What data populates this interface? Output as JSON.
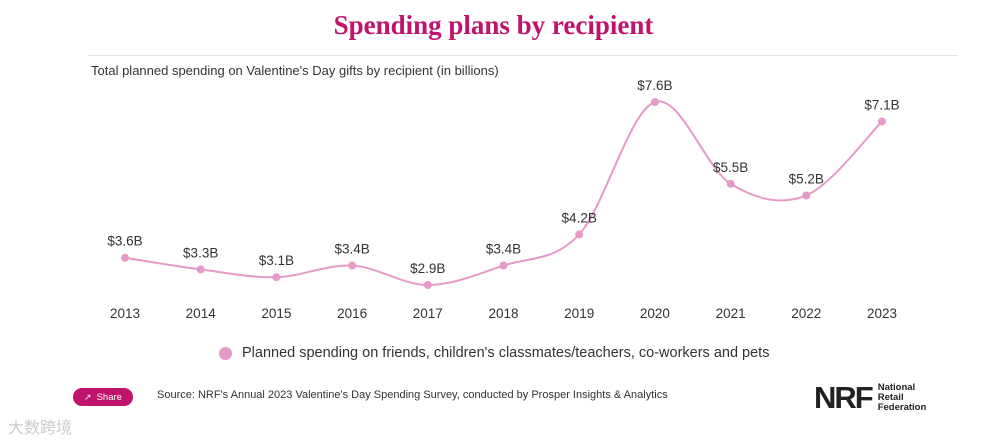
{
  "title": "Spending plans by recipient",
  "subtitle": "Total planned spending on Valentine's Day gifts by recipient (in billions)",
  "share_label": "Share",
  "source": "Source: NRF's Annual 2023 Valentine's Day Spending Survey, conducted by Prosper Insights & Analytics",
  "logo": {
    "mark": "NRF",
    "line1": "National",
    "line2": "Retail",
    "line3": "Federation"
  },
  "watermark": "大数跨境",
  "colors": {
    "accent": "#c0136b",
    "series": "#e59ac8",
    "text": "#333333"
  },
  "chart_data": {
    "type": "line",
    "title": "Spending plans by recipient",
    "subtitle": "Total planned spending on Valentine's Day gifts by recipient (in billions)",
    "categories": [
      "2013",
      "2014",
      "2015",
      "2016",
      "2017",
      "2018",
      "2019",
      "2020",
      "2021",
      "2022",
      "2023"
    ],
    "series": [
      {
        "name": "Planned spending on friends, children's classmates/teachers, co-workers and pets",
        "values": [
          3.6,
          3.3,
          3.1,
          3.4,
          2.9,
          3.4,
          4.2,
          7.6,
          5.5,
          5.2,
          7.1
        ],
        "labels": [
          "$3.6B",
          "$3.3B",
          "$3.1B",
          "$3.4B",
          "$2.9B",
          "$3.4B",
          "$4.2B",
          "$7.6B",
          "$5.5B",
          "$5.2B",
          "$7.1B"
        ]
      }
    ],
    "xlabel": "",
    "ylabel": "",
    "ylim": [
      2.9,
      7.6
    ],
    "grid": false,
    "legend": "bottom-center"
  }
}
